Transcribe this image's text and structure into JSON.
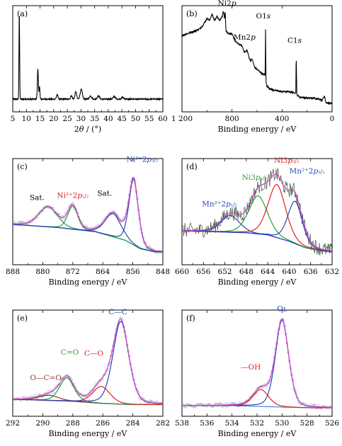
{
  "chart_data": [
    {
      "panel": "(a)",
      "type": "line",
      "xlabel": "2θ / (°)",
      "xlim": [
        5,
        60
      ],
      "ylim": [
        0,
        100
      ],
      "x_reversed": false,
      "xticks": [
        5,
        10,
        15,
        20,
        25,
        30,
        35,
        40,
        45,
        50,
        55,
        60
      ],
      "xtick_labels": [
        "5",
        "10",
        "15",
        "20",
        "25",
        "30",
        "35",
        "40",
        "45",
        "50",
        "55",
        "60"
      ],
      "baseline": 12,
      "noise": 0.6,
      "peaks": [
        {
          "x": 7.4,
          "h": 82,
          "w": 0.12
        },
        {
          "x": 14.2,
          "h": 28,
          "w": 0.18
        },
        {
          "x": 14.8,
          "h": 12,
          "w": 0.15
        },
        {
          "x": 21.3,
          "h": 4,
          "w": 0.3
        },
        {
          "x": 26.5,
          "h": 3,
          "w": 0.3
        },
        {
          "x": 28.1,
          "h": 7,
          "w": 0.3
        },
        {
          "x": 30.1,
          "h": 9,
          "w": 0.4
        },
        {
          "x": 33.5,
          "h": 3,
          "w": 0.4
        },
        {
          "x": 36.4,
          "h": 3,
          "w": 0.4
        },
        {
          "x": 42.2,
          "h": 2.5,
          "w": 0.4
        },
        {
          "x": 45.3,
          "h": 1.5,
          "w": 0.4
        }
      ],
      "annotations": []
    },
    {
      "panel": "(b)",
      "type": "line",
      "xlabel": "Binding energy / eV",
      "xlim": [
        1200,
        0
      ],
      "ylim": [
        0,
        100
      ],
      "x_reversed": true,
      "xticks": [
        1200,
        800,
        400,
        0
      ],
      "xtick_labels": [
        "1 200",
        "800",
        "400",
        "0"
      ],
      "survey": [
        [
          1200,
          72
        ],
        [
          1150,
          74
        ],
        [
          1100,
          76
        ],
        [
          1060,
          78
        ],
        [
          1030,
          82
        ],
        [
          1000,
          88
        ],
        [
          980,
          86
        ],
        [
          960,
          92
        ],
        [
          940,
          86
        ],
        [
          920,
          90
        ],
        [
          900,
          86
        ],
        [
          880,
          89
        ],
        [
          870,
          95
        ],
        [
          860,
          88
        ],
        [
          855,
          96
        ],
        [
          848,
          76
        ],
        [
          830,
          74
        ],
        [
          800,
          73
        ],
        [
          770,
          66
        ],
        [
          750,
          64
        ],
        [
          720,
          62
        ],
        [
          700,
          56
        ],
        [
          680,
          58
        ],
        [
          660,
          50
        ],
        [
          650,
          48
        ],
        [
          640,
          50
        ],
        [
          620,
          42
        ],
        [
          600,
          40
        ],
        [
          580,
          38
        ],
        [
          560,
          36
        ],
        [
          540,
          35
        ],
        [
          535,
          34
        ],
        [
          532,
          77
        ],
        [
          528,
          28
        ],
        [
          520,
          24
        ],
        [
          500,
          22
        ],
        [
          480,
          21
        ],
        [
          450,
          20
        ],
        [
          400,
          19
        ],
        [
          350,
          19
        ],
        [
          300,
          18
        ],
        [
          290,
          18
        ],
        [
          287,
          57
        ],
        [
          282,
          16
        ],
        [
          260,
          14
        ],
        [
          200,
          13
        ],
        [
          150,
          13
        ],
        [
          100,
          12
        ],
        [
          80,
          11
        ],
        [
          60,
          15
        ],
        [
          50,
          9
        ],
        [
          30,
          8
        ],
        [
          10,
          8
        ],
        [
          0,
          8
        ]
      ],
      "annotations": [
        {
          "text": "Ni2p",
          "x": 840,
          "y": 100,
          "color": "#000000"
        },
        {
          "text": "Mn2p",
          "x": 700,
          "y": 68,
          "color": "#000000"
        },
        {
          "text": "O1s",
          "x": 550,
          "y": 88,
          "color": "#000000"
        },
        {
          "text": "C1s",
          "x": 300,
          "y": 65,
          "color": "#000000"
        }
      ]
    },
    {
      "panel": "(c)",
      "type": "line",
      "xlabel": "Binding energy / eV",
      "xlim": [
        888,
        848
      ],
      "ylim": [
        0,
        100
      ],
      "x_reversed": true,
      "xticks": [
        888,
        880,
        872,
        864,
        856,
        848
      ],
      "xtick_labels": [
        "888",
        "880",
        "872",
        "864",
        "856",
        "848"
      ],
      "background": [
        [
          888,
          38
        ],
        [
          876,
          35
        ],
        [
          866,
          31
        ],
        [
          858,
          23
        ],
        [
          854,
          15
        ],
        [
          850,
          12
        ],
        [
          848,
          12
        ]
      ],
      "components": [
        {
          "name": "Ni2+2p1/2",
          "center": 872.0,
          "height": 22,
          "width": 1.4,
          "color": "#22a03c"
        },
        {
          "name": "Sat. (878)",
          "center": 878.6,
          "height": 19,
          "width": 2.6,
          "color": "#22a03c"
        },
        {
          "name": "Sat. (861)",
          "center": 861.3,
          "height": 22,
          "width": 2.2,
          "color": "#2b45b5"
        },
        {
          "name": "Ni2+2p3/2",
          "center": 855.8,
          "height": 62,
          "width": 1.3,
          "color": "#2b45b5"
        }
      ],
      "data_points": true,
      "annotations": [
        {
          "text": "Sat.",
          "x": 881.5,
          "y": 61,
          "color": "#000000"
        },
        {
          "text": "Ni²⁺2p₁/₂",
          "x": 872,
          "y": 63,
          "color": "#e02020"
        },
        {
          "text": "Sat.",
          "x": 863.5,
          "y": 65,
          "color": "#000000"
        },
        {
          "text": "Ni²⁺2p₃/₂",
          "x": 853.5,
          "y": 97,
          "color": "#2b45b5"
        }
      ]
    },
    {
      "panel": "(d)",
      "type": "line",
      "xlabel": "Binding energy / eV",
      "xlim": [
        660,
        632
      ],
      "ylim": [
        0,
        100
      ],
      "x_reversed": true,
      "xticks": [
        660,
        656,
        652,
        648,
        644,
        640,
        636,
        632
      ],
      "xtick_labels": [
        "660",
        "656",
        "652",
        "648",
        "644",
        "640",
        "636",
        "632"
      ],
      "background": [
        [
          660,
          32
        ],
        [
          648,
          30
        ],
        [
          644,
          28
        ],
        [
          640,
          22
        ],
        [
          637,
          16
        ],
        [
          634,
          13
        ],
        [
          632,
          12
        ]
      ],
      "components": [
        {
          "name": "Mn2+2p1/2",
          "center": 651.0,
          "height": 16,
          "width": 1.8,
          "color": "#2b45b5"
        },
        {
          "name": "Ni3p1/2",
          "center": 645.8,
          "height": 36,
          "width": 1.8,
          "color": "#22a03c"
        },
        {
          "name": "Ni3p3/2",
          "center": 642.3,
          "height": 50,
          "width": 1.7,
          "color": "#e02020"
        },
        {
          "name": "Mn2+2p3/2",
          "center": 638.9,
          "height": 40,
          "width": 1.4,
          "color": "#2b45b5"
        }
      ],
      "data_points": false,
      "noisy_data": true,
      "annotations": [
        {
          "text": "Mn²⁺2p₁/₂",
          "x": 653,
          "y": 55,
          "color": "#2b45b5"
        },
        {
          "text": "Ni3p₁/₂",
          "x": 646.5,
          "y": 80,
          "color": "#22a03c"
        },
        {
          "text": "Ni3p₃/₂",
          "x": 640.5,
          "y": 96,
          "color": "#e02020"
        },
        {
          "text": "Mn²⁺2p₃/₂",
          "x": 636.7,
          "y": 86,
          "color": "#2b45b5"
        }
      ]
    },
    {
      "panel": "(e)",
      "type": "line",
      "xlabel": "Binding energy / eV",
      "xlim": [
        292,
        282
      ],
      "ylim": [
        0,
        100
      ],
      "x_reversed": true,
      "xticks": [
        292,
        290,
        288,
        286,
        284,
        282
      ],
      "xtick_labels": [
        "292",
        "290",
        "288",
        "286",
        "284",
        "282"
      ],
      "background": [
        [
          292,
          16
        ],
        [
          288,
          14
        ],
        [
          286,
          12
        ],
        [
          284,
          11
        ],
        [
          282,
          11
        ]
      ],
      "components": [
        {
          "name": "O—C=O",
          "center": 289.6,
          "height": 5,
          "width": 0.7,
          "color": "#8b3a2a"
        },
        {
          "name": "C=O",
          "center": 288.4,
          "height": 22,
          "width": 0.5,
          "color": "#22a03c"
        },
        {
          "name": "C—O",
          "center": 286.1,
          "height": 16,
          "width": 0.6,
          "color": "#e02020"
        },
        {
          "name": "C—C",
          "center": 284.8,
          "height": 78,
          "width": 0.55,
          "color": "#2b45b5"
        }
      ],
      "data_points": true,
      "annotations": [
        {
          "text": "O—C=O",
          "x": 289.8,
          "y": 34,
          "color": "#8b3a2a"
        },
        {
          "text": "C=O",
          "x": 288.2,
          "y": 58,
          "color": "#22a03c"
        },
        {
          "text": "C—O",
          "x": 286.6,
          "y": 57,
          "color": "#e02020"
        },
        {
          "text": "C—C",
          "x": 285.0,
          "y": 96,
          "color": "#2b45b5"
        }
      ]
    },
    {
      "panel": "(f)",
      "type": "line",
      "xlabel": "Binding energy / eV",
      "xlim": [
        538,
        526
      ],
      "ylim": [
        0,
        100
      ],
      "x_reversed": true,
      "xticks": [
        538,
        536,
        534,
        532,
        530,
        528,
        526
      ],
      "xtick_labels": [
        "538",
        "536",
        "534",
        "532",
        "530",
        "528",
        "526"
      ],
      "background": [
        [
          538,
          10
        ],
        [
          534,
          10
        ],
        [
          531,
          9
        ],
        [
          528,
          8
        ],
        [
          526,
          8
        ]
      ],
      "components": [
        {
          "name": "—OH",
          "center": 531.7,
          "height": 16,
          "width": 0.65,
          "color": "#e02020"
        },
        {
          "name": "OL",
          "center": 530.0,
          "height": 82,
          "width": 0.55,
          "color": "#2b45b5"
        }
      ],
      "data_points": true,
      "annotations": [
        {
          "text": "—OH",
          "x": 532.5,
          "y": 44,
          "color": "#e02020"
        },
        {
          "text": "Oʟ",
          "x": 530.0,
          "y": 99,
          "color": "#2b45b5"
        }
      ]
    }
  ],
  "colors": {
    "envelope": "#d040c8",
    "data": "#1a1a1a",
    "background_line": "#2b6ad8"
  }
}
